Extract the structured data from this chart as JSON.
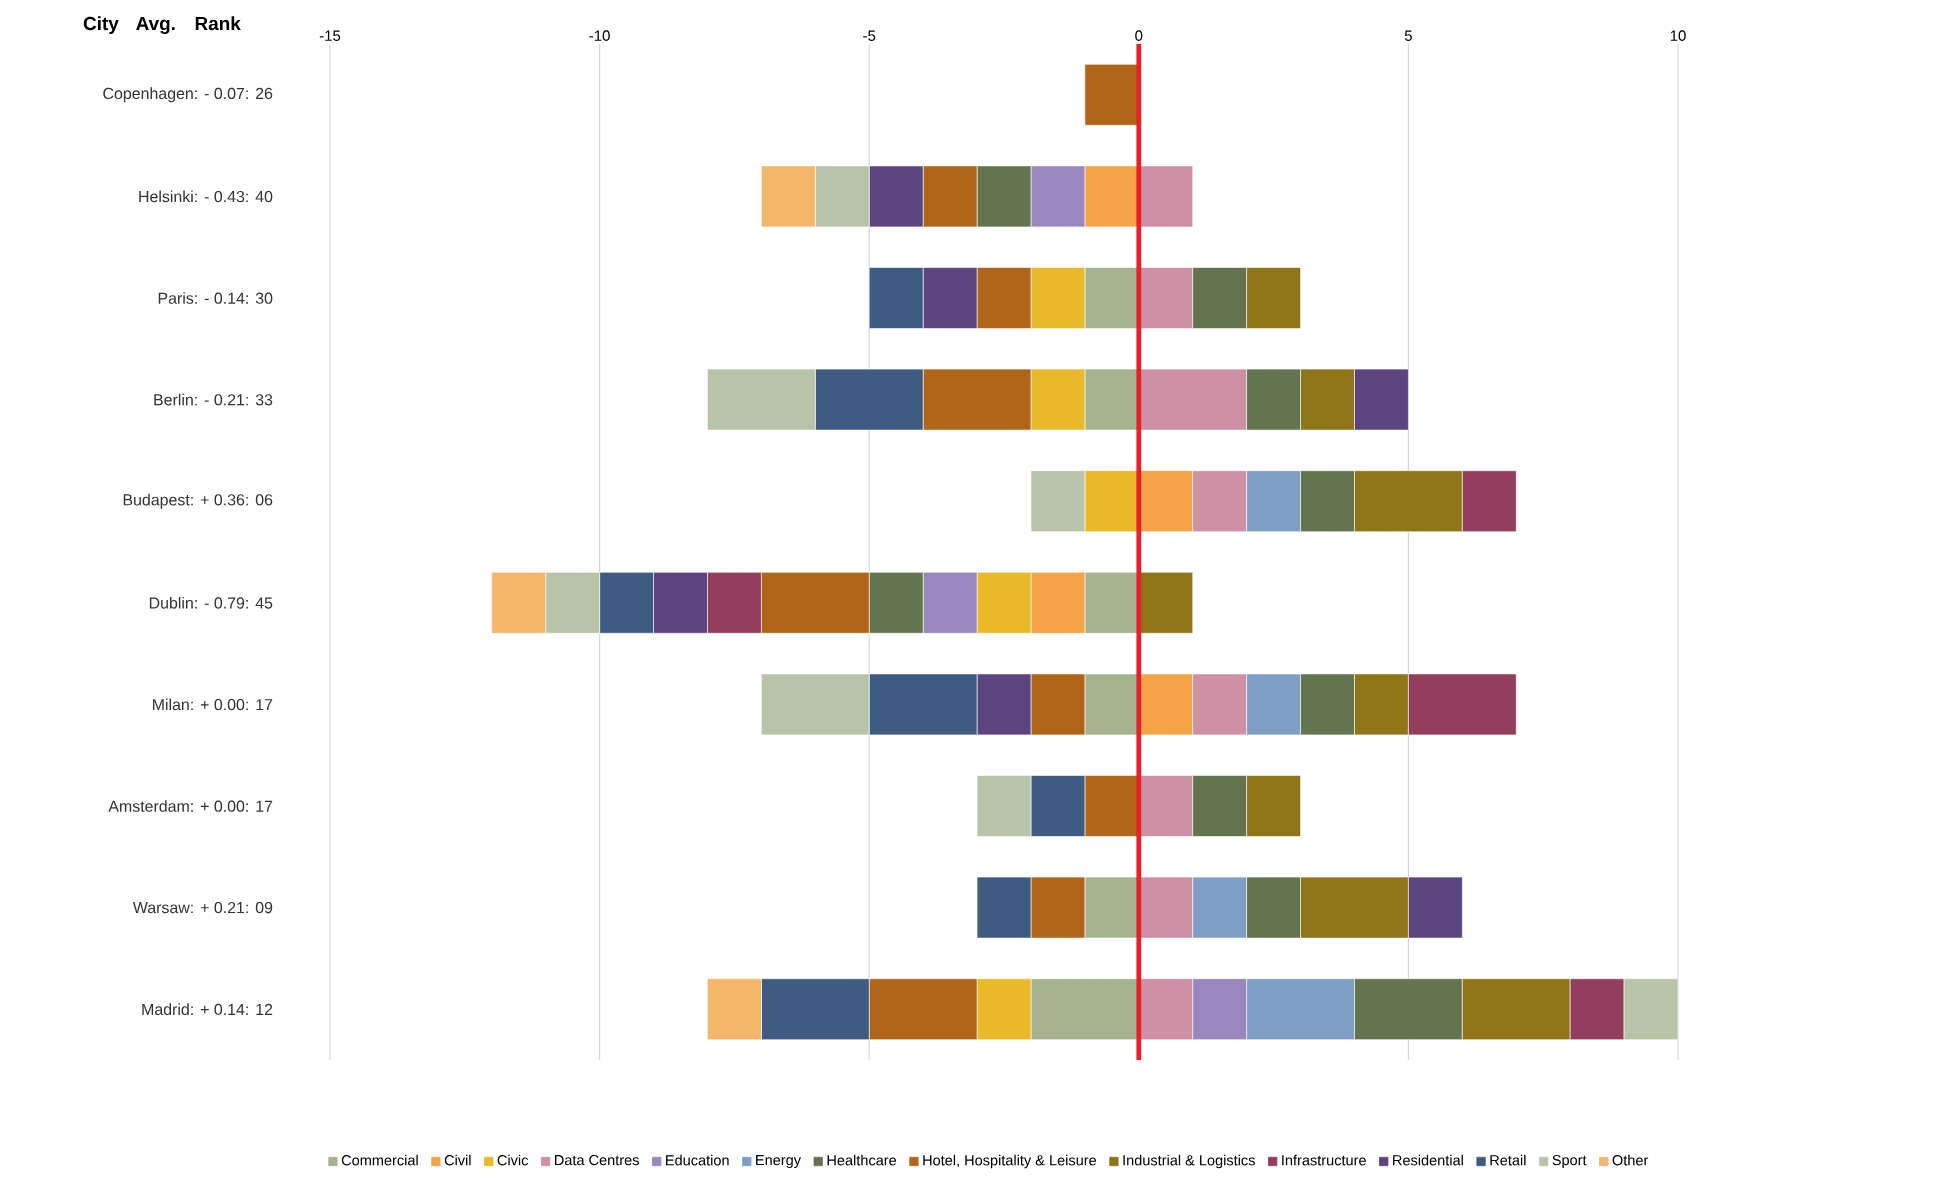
{
  "chart_data": {
    "type": "bar",
    "orientation": "horizontal",
    "stacked": true,
    "ylabel": "City Avg. Rank",
    "categories": [
      "Copenhagen: - 0.07: 26",
      "Helsinki: - 0.43: 40",
      "Paris: - 0.14: 30",
      "Berlin: - 0.21: 33",
      "Budapest: + 0.36: 06",
      "Dublin: - 0.79: 45",
      "Milan: + 0.00: 17",
      "Amsterdam: + 0.00: 17",
      "Warsaw: + 0.21: 09",
      "Madrid: + 0.14: 12"
    ],
    "xlim": [
      -15,
      10
    ],
    "xticks": [
      -15,
      -10,
      -5,
      0,
      5,
      10
    ],
    "grid": "x",
    "legend": "bottom",
    "ref_lines": [
      {
        "axis": "x",
        "value": 0,
        "color": "#e8202a"
      }
    ],
    "series": [
      {
        "name": "Commercial",
        "color": "#a5b38f",
        "values": [
          null,
          null,
          -1,
          -1,
          null,
          -1,
          -1,
          null,
          -1,
          -2
        ]
      },
      {
        "name": "Civil",
        "color": "#f4a447",
        "values": [
          null,
          -1,
          null,
          null,
          1,
          -1,
          1,
          null,
          null,
          null
        ]
      },
      {
        "name": "Civic",
        "color": "#e8ba2a",
        "values": [
          null,
          null,
          -1,
          -1,
          -1,
          -1,
          null,
          null,
          null,
          -1
        ]
      },
      {
        "name": "Data Centres",
        "color": "#cf8fa5",
        "values": [
          null,
          1,
          1,
          2,
          1,
          null,
          1,
          1,
          1,
          1
        ]
      },
      {
        "name": "Education",
        "color": "#9a87bd",
        "values": [
          null,
          -1,
          null,
          null,
          null,
          -1,
          null,
          null,
          null,
          1
        ]
      },
      {
        "name": "Energy",
        "color": "#7f9ec3",
        "values": [
          null,
          null,
          null,
          null,
          1,
          null,
          1,
          null,
          1,
          2
        ]
      },
      {
        "name": "Healthcare",
        "color": "#62754f",
        "values": [
          null,
          -1,
          1,
          1,
          1,
          -1,
          1,
          1,
          1,
          2
        ]
      },
      {
        "name": "Hotel, Hospitality & Leisure",
        "color": "#b06518",
        "values": [
          -1,
          -1,
          -1,
          -2,
          null,
          -2,
          -1,
          -1,
          -1,
          -2
        ]
      },
      {
        "name": "Industrial & Logistics",
        "color": "#8f7418",
        "values": [
          null,
          null,
          1,
          1,
          2,
          1,
          1,
          1,
          2,
          2
        ]
      },
      {
        "name": "Infrastructure",
        "color": "#933e5c",
        "values": [
          null,
          null,
          null,
          null,
          1,
          -1,
          2,
          null,
          null,
          1
        ]
      },
      {
        "name": "Residential",
        "color": "#5c447f",
        "values": [
          null,
          -1,
          -1,
          1,
          null,
          -1,
          -1,
          null,
          1,
          null
        ]
      },
      {
        "name": "Retail",
        "color": "#3e5c82",
        "values": [
          null,
          null,
          -1,
          -2,
          null,
          -1,
          -2,
          -1,
          -1,
          -2
        ]
      },
      {
        "name": "Sport",
        "color": "#b8c4a8",
        "values": [
          null,
          -1,
          null,
          -2,
          -1,
          -1,
          -2,
          -1,
          null,
          1
        ]
      },
      {
        "name": "Other",
        "color": "#f5b56a",
        "values": [
          null,
          -1,
          null,
          null,
          null,
          -1,
          null,
          null,
          null,
          -1
        ]
      }
    ]
  }
}
